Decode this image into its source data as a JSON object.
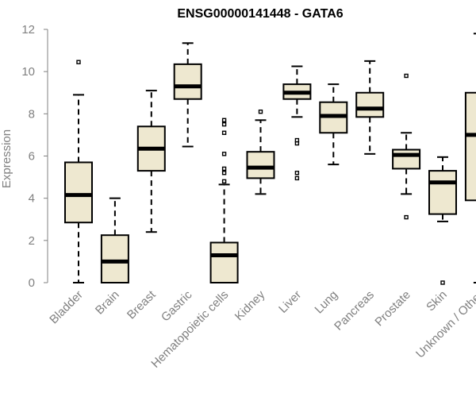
{
  "chart_data": {
    "type": "box",
    "title": "ENSG00000141448 - GATA6",
    "xlabel": "",
    "ylabel": "Expression",
    "ylim": [
      0,
      12
    ],
    "yticks": [
      0,
      2,
      4,
      6,
      8,
      10,
      12
    ],
    "categories": [
      "Bladder",
      "Brain",
      "Breast",
      "Gastric",
      "Hematopoietic cells",
      "Kidney",
      "Liver",
      "Lung",
      "Pancreas",
      "Prostate",
      "Skin",
      "Unknown / Other"
    ],
    "boxes": [
      {
        "category": "Bladder",
        "whisker_low": 0.0,
        "q1": 2.85,
        "median": 4.15,
        "q3": 5.7,
        "whisker_high": 8.9,
        "outliers": [
          10.45
        ]
      },
      {
        "category": "Brain",
        "whisker_low": 0.0,
        "q1": 0.0,
        "median": 1.0,
        "q3": 2.25,
        "whisker_high": 4.0,
        "outliers": []
      },
      {
        "category": "Breast",
        "whisker_low": 2.4,
        "q1": 5.3,
        "median": 6.35,
        "q3": 7.4,
        "whisker_high": 9.1,
        "outliers": []
      },
      {
        "category": "Gastric",
        "whisker_low": 6.45,
        "q1": 8.7,
        "median": 9.3,
        "q3": 10.35,
        "whisker_high": 11.35,
        "outliers": []
      },
      {
        "category": "Hematopoietic cells",
        "whisker_low": 0.0,
        "q1": 0.0,
        "median": 1.3,
        "q3": 1.9,
        "whisker_high": 4.65,
        "outliers": [
          4.8,
          5.2,
          5.4,
          6.1,
          7.1,
          7.5,
          7.7
        ]
      },
      {
        "category": "Kidney",
        "whisker_low": 4.2,
        "q1": 4.95,
        "median": 5.45,
        "q3": 6.2,
        "whisker_high": 7.7,
        "outliers": [
          8.1
        ]
      },
      {
        "category": "Liver",
        "whisker_low": 7.85,
        "q1": 8.7,
        "median": 9.0,
        "q3": 9.4,
        "whisker_high": 10.25,
        "outliers": [
          4.95,
          5.2,
          6.6,
          6.75
        ]
      },
      {
        "category": "Lung",
        "whisker_low": 5.6,
        "q1": 7.1,
        "median": 7.9,
        "q3": 8.55,
        "whisker_high": 9.4,
        "outliers": []
      },
      {
        "category": "Pancreas",
        "whisker_low": 6.1,
        "q1": 7.85,
        "median": 8.25,
        "q3": 9.0,
        "whisker_high": 10.5,
        "outliers": []
      },
      {
        "category": "Prostate",
        "whisker_low": 4.2,
        "q1": 5.4,
        "median": 6.05,
        "q3": 6.3,
        "whisker_high": 7.1,
        "outliers": [
          3.1,
          9.8
        ]
      },
      {
        "category": "Skin",
        "whisker_low": 2.9,
        "q1": 3.25,
        "median": 4.75,
        "q3": 5.3,
        "whisker_high": 5.95,
        "outliers": [
          0.0
        ]
      },
      {
        "category": "Unknown / Other",
        "whisker_low": 0.0,
        "q1": 3.9,
        "median": 7.0,
        "q3": 9.0,
        "whisker_high": 11.8,
        "outliers": []
      }
    ],
    "colors": {
      "box_fill": "#eee8d0",
      "box_stroke": "#000000",
      "axis": "#808080",
      "text": "#808080"
    },
    "grid": false,
    "legend": "none"
  }
}
